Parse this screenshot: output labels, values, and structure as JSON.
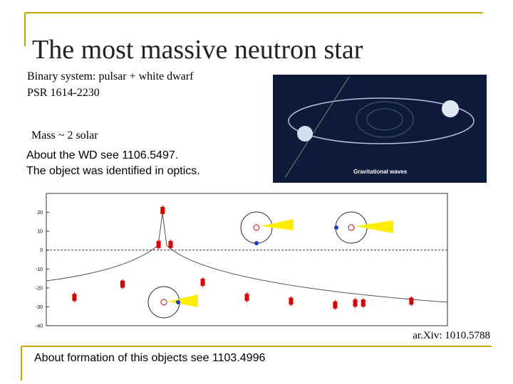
{
  "title": "The most massive neutron star",
  "lines": [
    "Binary system: pulsar + white dwarf",
    "PSR 1614-2230",
    "Mass ~ 2 solar"
  ],
  "notes": [
    "About the WD see 1106.5497.",
    "The object was identified in optics."
  ],
  "illustration": {
    "label": "Gravitational waves"
  },
  "chart_data": {
    "type": "scatter",
    "x": [
      0.07,
      0.19,
      0.28,
      0.29,
      0.31,
      0.39,
      0.5,
      0.61,
      0.72,
      0.77,
      0.79,
      0.91
    ],
    "values": [
      -25,
      -18,
      3,
      21,
      3,
      -17,
      -25,
      -27,
      -29,
      -28,
      -28,
      -27
    ],
    "color": "#dd0000",
    "xlim": [
      0,
      1
    ],
    "ylim": [
      -40,
      30
    ],
    "yticks": [
      20,
      10,
      0,
      -10,
      -20,
      -30,
      -40
    ]
  },
  "caption": "ar.Xiv: 1010.5788",
  "footer": "About formation of this objects see 1103.4996"
}
